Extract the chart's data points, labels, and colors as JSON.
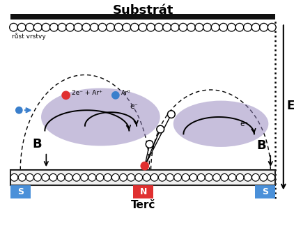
{
  "bg_color": "#ffffff",
  "substrate_bar_color": "#111111",
  "target_fill": "#f0f0f0",
  "target_border": "#222222",
  "magnet_S_color": "#4a90d9",
  "magnet_N_color": "#e03030",
  "plasma_color": "#9080bb",
  "plasma_alpha": 0.5,
  "black": "#111111",
  "blue_dot": "#3a7fcc",
  "red_dot": "#e03030",
  "Ar0_dot": "#3a7fcc",
  "label_substrate": "Substrát",
  "label_rost": "růst vrstvy",
  "label_terc": "Terč",
  "label_E": "E",
  "label_B": "B",
  "label_S": "S",
  "label_N": "N",
  "label_2eAr": "2e⁻ + Ar⁺",
  "label_Ar0": "Ar⁰",
  "label_eminus": "e⁻",
  "figsize": [
    4.22,
    3.36
  ],
  "dpi": 100
}
